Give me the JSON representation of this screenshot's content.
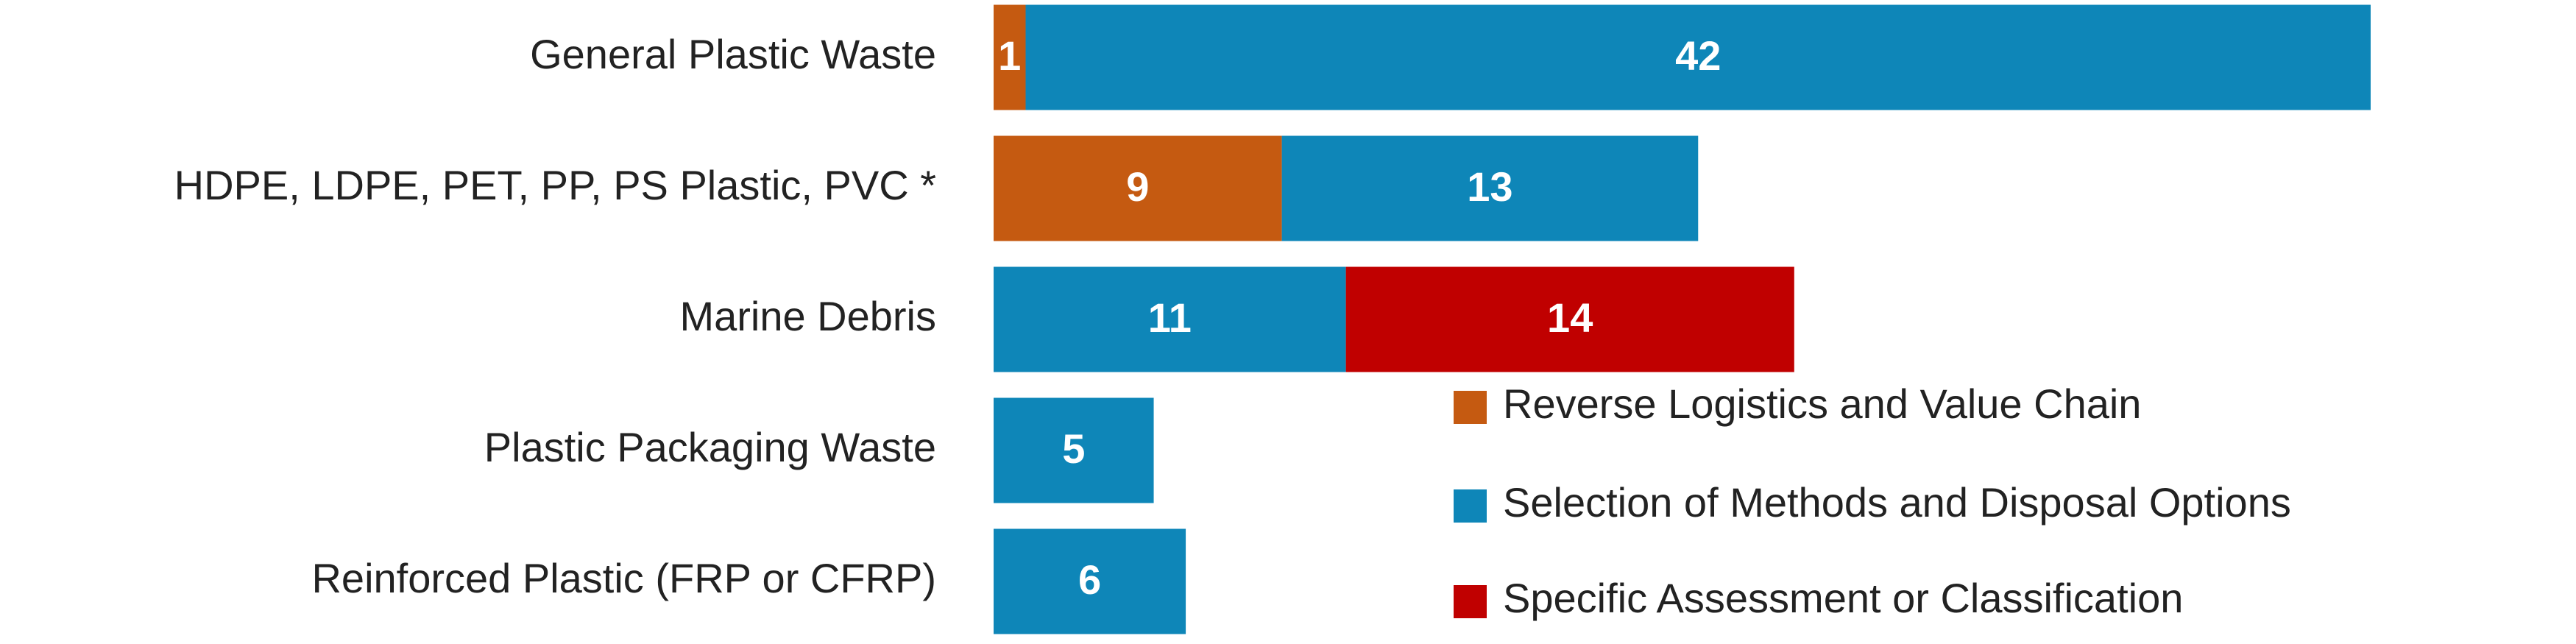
{
  "chart_data": {
    "type": "stacked-bar-horizontal",
    "categories": [
      "General Plastic Waste",
      "HDPE, LDPE, PET, PP, PS Plastic, PVC *",
      "Marine Debris",
      "Plastic Packaging Waste",
      "Reinforced Plastic (FRP or CFRP)"
    ],
    "series": [
      {
        "name": "Reverse Logistics and Value Chain",
        "color": "#c55a11",
        "values": [
          1,
          9,
          null,
          null,
          null
        ]
      },
      {
        "name": "Selection of Methods and Disposal Options",
        "color": "#0e86b8",
        "values": [
          42,
          13,
          11,
          5,
          6
        ]
      },
      {
        "name": "Specific Assessment or Classification",
        "color": "#c00000",
        "values": [
          null,
          null,
          14,
          null,
          null
        ]
      }
    ],
    "legend": "lower-right"
  }
}
